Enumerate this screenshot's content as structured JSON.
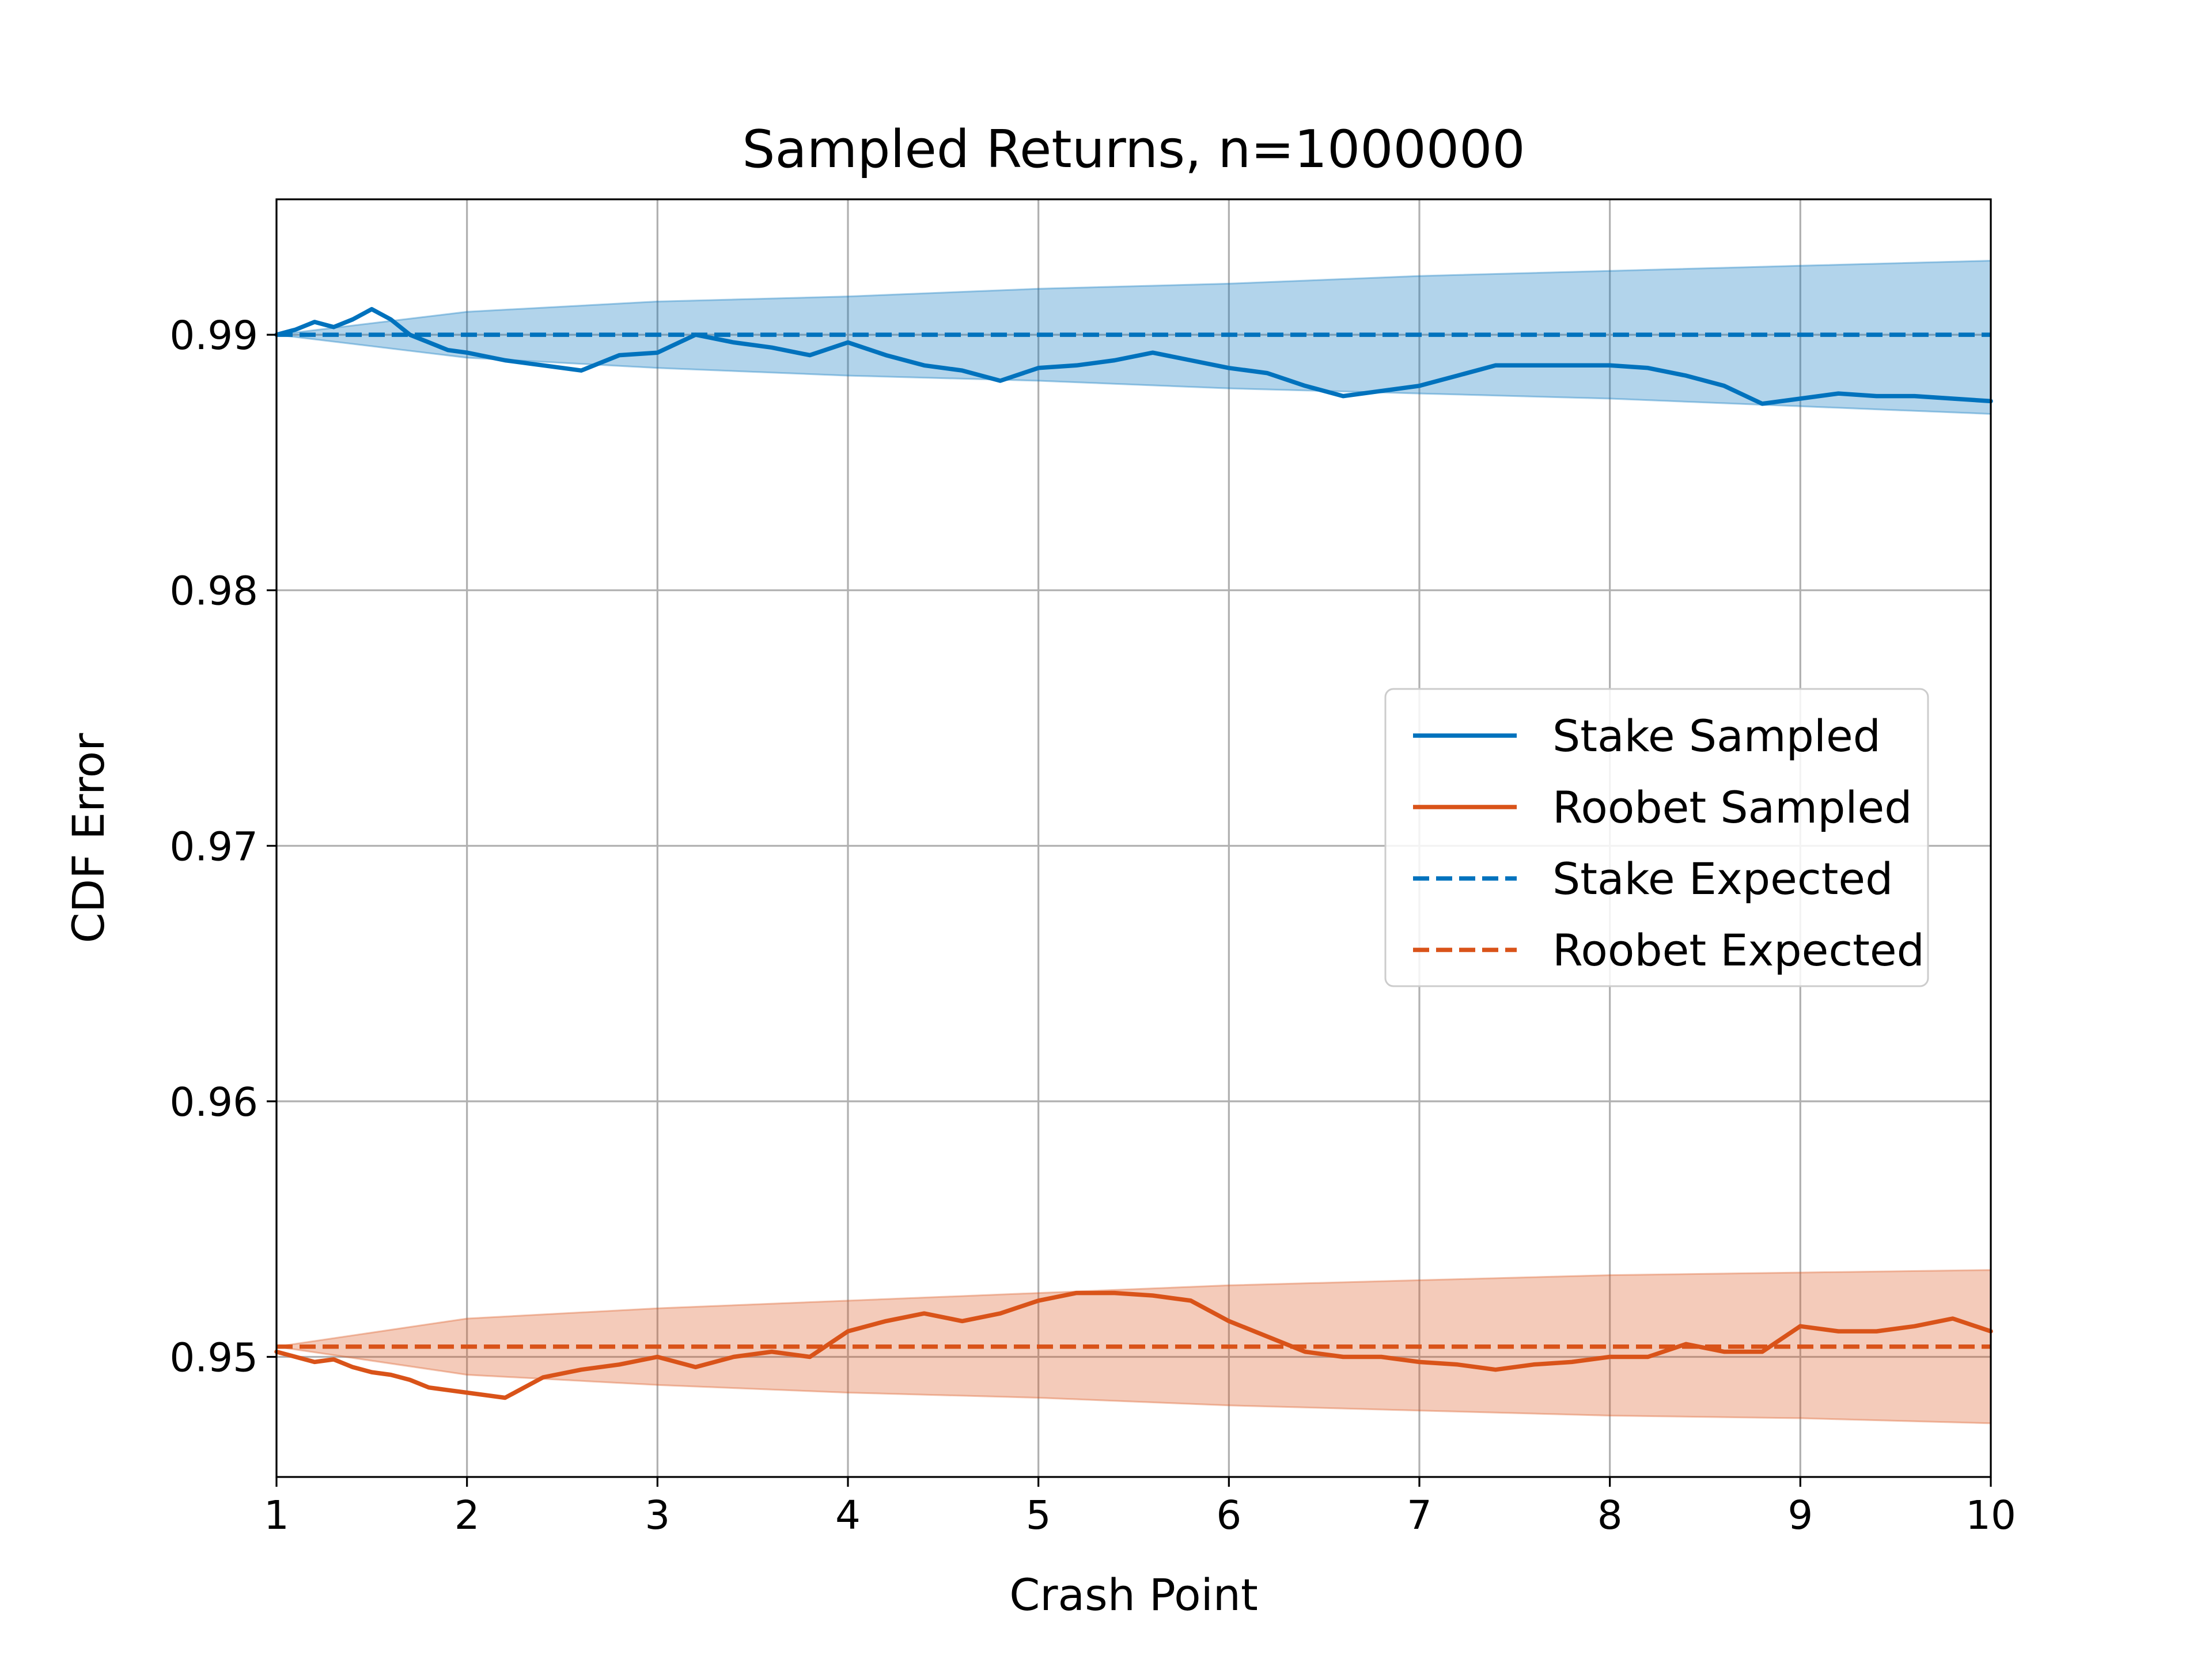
{
  "chart_data": {
    "type": "line",
    "title": "Sampled Returns, n=1000000",
    "xlabel": "Crash Point",
    "ylabel": "CDF Error",
    "xlim": [
      1,
      10
    ],
    "ylim": [
      0.9453,
      0.9953
    ],
    "xticks": [
      1,
      2,
      3,
      4,
      5,
      6,
      7,
      8,
      9,
      10
    ],
    "yticks": [
      0.95,
      0.96,
      0.97,
      0.98,
      0.99
    ],
    "ytick_labels": [
      "0.95",
      "0.96",
      "0.97",
      "0.98",
      "0.99"
    ],
    "grid": true,
    "legend_position": "center-right",
    "legend": [
      "Stake Sampled",
      "Roobet Sampled",
      "Stake Expected",
      "Roobet Expected"
    ],
    "colors": {
      "stake": "#0072bd",
      "roobet": "#d95319",
      "grid": "#b0b0b0"
    },
    "series": [
      {
        "name": "Stake Sampled",
        "style": "solid",
        "color": "#0072bd",
        "x": [
          1.0,
          1.1,
          1.2,
          1.3,
          1.4,
          1.5,
          1.6,
          1.7,
          1.8,
          1.9,
          2.0,
          2.2,
          2.4,
          2.6,
          2.8,
          3.0,
          3.2,
          3.4,
          3.6,
          3.8,
          4.0,
          4.2,
          4.4,
          4.6,
          4.8,
          5.0,
          5.2,
          5.4,
          5.6,
          5.8,
          6.0,
          6.2,
          6.4,
          6.6,
          6.8,
          7.0,
          7.2,
          7.4,
          7.6,
          7.8,
          8.0,
          8.2,
          8.4,
          8.6,
          8.8,
          9.0,
          9.2,
          9.4,
          9.6,
          9.8,
          10.0
        ],
        "y": [
          0.99,
          0.9902,
          0.9905,
          0.9903,
          0.9906,
          0.991,
          0.9906,
          0.99,
          0.9897,
          0.9894,
          0.9893,
          0.989,
          0.9888,
          0.9886,
          0.9892,
          0.9893,
          0.99,
          0.9897,
          0.9895,
          0.9892,
          0.9897,
          0.9892,
          0.9888,
          0.9886,
          0.9882,
          0.9887,
          0.9888,
          0.989,
          0.9893,
          0.989,
          0.9887,
          0.9885,
          0.988,
          0.9876,
          0.9878,
          0.988,
          0.9884,
          0.9888,
          0.9888,
          0.9888,
          0.9888,
          0.9887,
          0.9884,
          0.988,
          0.9873,
          0.9875,
          0.9877,
          0.9876,
          0.9876,
          0.9875,
          0.9874
        ]
      },
      {
        "name": "Roobet Sampled",
        "style": "solid",
        "color": "#d95319",
        "x": [
          1.0,
          1.1,
          1.2,
          1.3,
          1.4,
          1.5,
          1.6,
          1.7,
          1.8,
          1.9,
          2.0,
          2.2,
          2.4,
          2.6,
          2.8,
          3.0,
          3.2,
          3.4,
          3.6,
          3.8,
          4.0,
          4.2,
          4.4,
          4.6,
          4.8,
          5.0,
          5.2,
          5.4,
          5.6,
          5.8,
          6.0,
          6.2,
          6.4,
          6.6,
          6.8,
          7.0,
          7.2,
          7.4,
          7.6,
          7.8,
          8.0,
          8.2,
          8.4,
          8.6,
          8.8,
          9.0,
          9.2,
          9.4,
          9.6,
          9.8,
          10.0
        ],
        "y": [
          0.9502,
          0.95,
          0.9498,
          0.9499,
          0.9496,
          0.9494,
          0.9493,
          0.9491,
          0.9488,
          0.9487,
          0.9486,
          0.9484,
          0.9492,
          0.9495,
          0.9497,
          0.95,
          0.9496,
          0.95,
          0.9502,
          0.95,
          0.951,
          0.9514,
          0.9517,
          0.9514,
          0.9517,
          0.9522,
          0.9525,
          0.9525,
          0.9524,
          0.9522,
          0.9514,
          0.9508,
          0.9502,
          0.95,
          0.95,
          0.9498,
          0.9497,
          0.9495,
          0.9497,
          0.9498,
          0.95,
          0.95,
          0.9505,
          0.9502,
          0.9502,
          0.9512,
          0.951,
          0.951,
          0.9512,
          0.9515,
          0.951
        ]
      },
      {
        "name": "Stake Expected",
        "style": "dashed",
        "color": "#0072bd",
        "x": [
          1,
          10
        ],
        "y": [
          0.99,
          0.99
        ]
      },
      {
        "name": "Roobet Expected",
        "style": "dashed",
        "color": "#d95319",
        "x": [
          1,
          10
        ],
        "y": [
          0.9504,
          0.9504
        ]
      }
    ],
    "bands": [
      {
        "color": "#0072bd",
        "opacity": 0.3,
        "x": [
          1.0,
          2.0,
          3.0,
          4.0,
          5.0,
          6.0,
          7.0,
          8.0,
          9.0,
          10.0
        ],
        "upper": [
          0.99,
          0.9909,
          0.9913,
          0.9915,
          0.9918,
          0.992,
          0.9923,
          0.9925,
          0.9927,
          0.9929
        ],
        "lower": [
          0.99,
          0.9891,
          0.9887,
          0.9884,
          0.9882,
          0.9879,
          0.9877,
          0.9875,
          0.9872,
          0.9869
        ]
      },
      {
        "color": "#d95319",
        "opacity": 0.3,
        "x": [
          1.0,
          2.0,
          3.0,
          4.0,
          5.0,
          6.0,
          7.0,
          8.0,
          9.0,
          10.0
        ],
        "upper": [
          0.9504,
          0.9515,
          0.9519,
          0.9522,
          0.9525,
          0.9528,
          0.953,
          0.9532,
          0.9533,
          0.9534
        ],
        "lower": [
          0.9504,
          0.9493,
          0.9489,
          0.9486,
          0.9484,
          0.9481,
          0.9479,
          0.9477,
          0.9476,
          0.9474
        ]
      }
    ]
  }
}
